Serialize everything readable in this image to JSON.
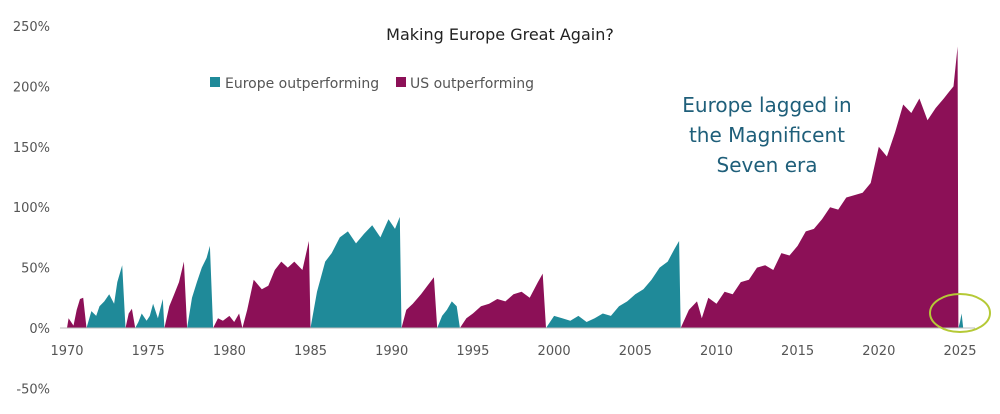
{
  "chart_data": {
    "type": "area",
    "title": "Making Europe Great Again?",
    "xlabel": "",
    "ylabel": "",
    "xlim": [
      1970,
      2026
    ],
    "ylim": [
      -50,
      250
    ],
    "y_ticks": [
      "-50%",
      "0%",
      "50%",
      "100%",
      "150%",
      "200%",
      "250%"
    ],
    "y_tick_values": [
      -50,
      0,
      50,
      100,
      150,
      200,
      250
    ],
    "x_ticks": [
      "1970",
      "1975",
      "1980",
      "1985",
      "1990",
      "1995",
      "2000",
      "2005",
      "2010",
      "2015",
      "2020",
      "2025"
    ],
    "x_tick_values": [
      1970,
      1975,
      1980,
      1985,
      1990,
      1995,
      2000,
      2005,
      2010,
      2015,
      2020,
      2025
    ],
    "grid": false,
    "legend_position": "top-left",
    "legend": [
      {
        "label": "Europe outperforming",
        "color": "#1f8a99"
      },
      {
        "label": "US outperforming",
        "color": "#8c1057"
      }
    ],
    "colors": {
      "europe": "#1f8a99",
      "us": "#8c1057",
      "highlight": "#b5c936"
    },
    "annotation": {
      "lines": [
        "Europe lagged in",
        "the Magnificent",
        "Seven era"
      ]
    },
    "series": [
      {
        "name": "US outperforming",
        "x": [
          1970.0,
          1970.1,
          1970.25,
          1970.4,
          1970.6,
          1970.8,
          1971.0,
          1971.2
        ],
        "y": [
          0,
          8,
          5,
          2,
          15,
          24,
          25,
          0
        ]
      },
      {
        "name": "Europe outperforming",
        "x": [
          1971.2,
          1971.5,
          1971.8,
          1972.0,
          1972.3,
          1972.6,
          1972.9,
          1973.1,
          1973.4,
          1973.6
        ],
        "y": [
          0,
          14,
          10,
          18,
          22,
          28,
          20,
          38,
          52,
          0
        ]
      },
      {
        "name": "US outperforming",
        "x": [
          1973.6,
          1973.8,
          1974.0,
          1974.2
        ],
        "y": [
          0,
          12,
          16,
          0
        ]
      },
      {
        "name": "Europe outperforming",
        "x": [
          1974.2,
          1974.4,
          1974.6,
          1974.9,
          1975.1,
          1975.3,
          1975.6,
          1975.9,
          1976.0
        ],
        "y": [
          0,
          5,
          12,
          6,
          10,
          20,
          8,
          24,
          0
        ]
      },
      {
        "name": "US outperforming",
        "x": [
          1976.0,
          1976.3,
          1976.6,
          1976.9,
          1977.2,
          1977.4
        ],
        "y": [
          0,
          18,
          28,
          38,
          55,
          0
        ]
      },
      {
        "name": "Europe outperforming",
        "x": [
          1977.4,
          1977.7,
          1978.0,
          1978.3,
          1978.6,
          1978.8,
          1979.0
        ],
        "y": [
          0,
          25,
          38,
          50,
          58,
          68,
          0
        ]
      },
      {
        "name": "US outperforming",
        "x": [
          1979.0,
          1979.3,
          1979.6,
          1980.0,
          1980.3,
          1980.6,
          1980.8
        ],
        "y": [
          0,
          8,
          6,
          10,
          5,
          12,
          0
        ]
      },
      {
        "name": "US outperforming",
        "x": [
          1980.8,
          1981.1,
          1981.5,
          1982.0,
          1982.4,
          1982.8,
          1983.2,
          1983.6,
          1984.0,
          1984.5,
          1984.9,
          1985.0
        ],
        "y": [
          0,
          15,
          40,
          32,
          35,
          48,
          55,
          50,
          55,
          48,
          72,
          0
        ]
      },
      {
        "name": "Europe outperforming",
        "x": [
          1985.0,
          1985.4,
          1985.9,
          1986.3,
          1986.8,
          1987.3,
          1987.8,
          1988.3,
          1988.8,
          1989.3,
          1989.8,
          1990.2,
          1990.5,
          1990.6
        ],
        "y": [
          0,
          30,
          55,
          62,
          75,
          80,
          70,
          78,
          85,
          75,
          90,
          82,
          92,
          0
        ]
      },
      {
        "name": "US outperforming",
        "x": [
          1990.6,
          1990.9,
          1991.3,
          1991.8,
          1992.2,
          1992.6,
          1992.8
        ],
        "y": [
          0,
          15,
          20,
          28,
          35,
          42,
          0
        ]
      },
      {
        "name": "Europe outperforming",
        "x": [
          1992.8,
          1993.1,
          1993.4,
          1993.7,
          1994.0,
          1994.2
        ],
        "y": [
          0,
          10,
          15,
          22,
          18,
          0
        ]
      },
      {
        "name": "US outperforming",
        "x": [
          1994.2,
          1994.6,
          1995.0,
          1995.5,
          1996.0,
          1996.5,
          1997.0,
          1997.5,
          1998.0,
          1998.5,
          1999.0,
          1999.3,
          1999.5
        ],
        "y": [
          0,
          8,
          12,
          18,
          20,
          24,
          22,
          28,
          30,
          25,
          38,
          45,
          0
        ]
      },
      {
        "name": "Europe outperforming",
        "x": [
          1999.5,
          2000.0,
          2000.5,
          2001.0,
          2001.5,
          2002.0,
          2002.5,
          2003.0,
          2003.5,
          2004.0,
          2004.5,
          2005.0,
          2005.5,
          2006.0,
          2006.5,
          2007.0,
          2007.4,
          2007.7,
          2007.8
        ],
        "y": [
          0,
          10,
          8,
          6,
          10,
          5,
          8,
          12,
          10,
          18,
          22,
          28,
          32,
          40,
          50,
          55,
          65,
          72,
          0
        ]
      },
      {
        "name": "US outperforming",
        "x": [
          2007.8,
          2008.3,
          2008.8,
          2009.1,
          2009.5,
          2010.0,
          2010.5,
          2011.0,
          2011.5,
          2012.0,
          2012.5,
          2013.0,
          2013.5,
          2014.0,
          2014.5,
          2015.0,
          2015.5,
          2016.0,
          2016.5,
          2017.0,
          2017.5,
          2018.0,
          2018.5,
          2019.0,
          2019.5,
          2020.0,
          2020.5,
          2021.0,
          2021.5,
          2022.0,
          2022.5,
          2023.0,
          2023.5,
          2024.0,
          2024.3,
          2024.6,
          2024.85,
          2024.9
        ],
        "y": [
          0,
          15,
          22,
          8,
          25,
          20,
          30,
          28,
          38,
          40,
          50,
          52,
          48,
          62,
          60,
          68,
          80,
          82,
          90,
          100,
          98,
          108,
          110,
          112,
          120,
          150,
          142,
          162,
          185,
          178,
          190,
          172,
          182,
          190,
          195,
          200,
          233,
          0
        ]
      },
      {
        "name": "Europe outperforming",
        "x": [
          2024.9,
          2025.0,
          2025.1,
          2025.2
        ],
        "y": [
          0,
          5,
          12,
          0
        ]
      }
    ]
  }
}
